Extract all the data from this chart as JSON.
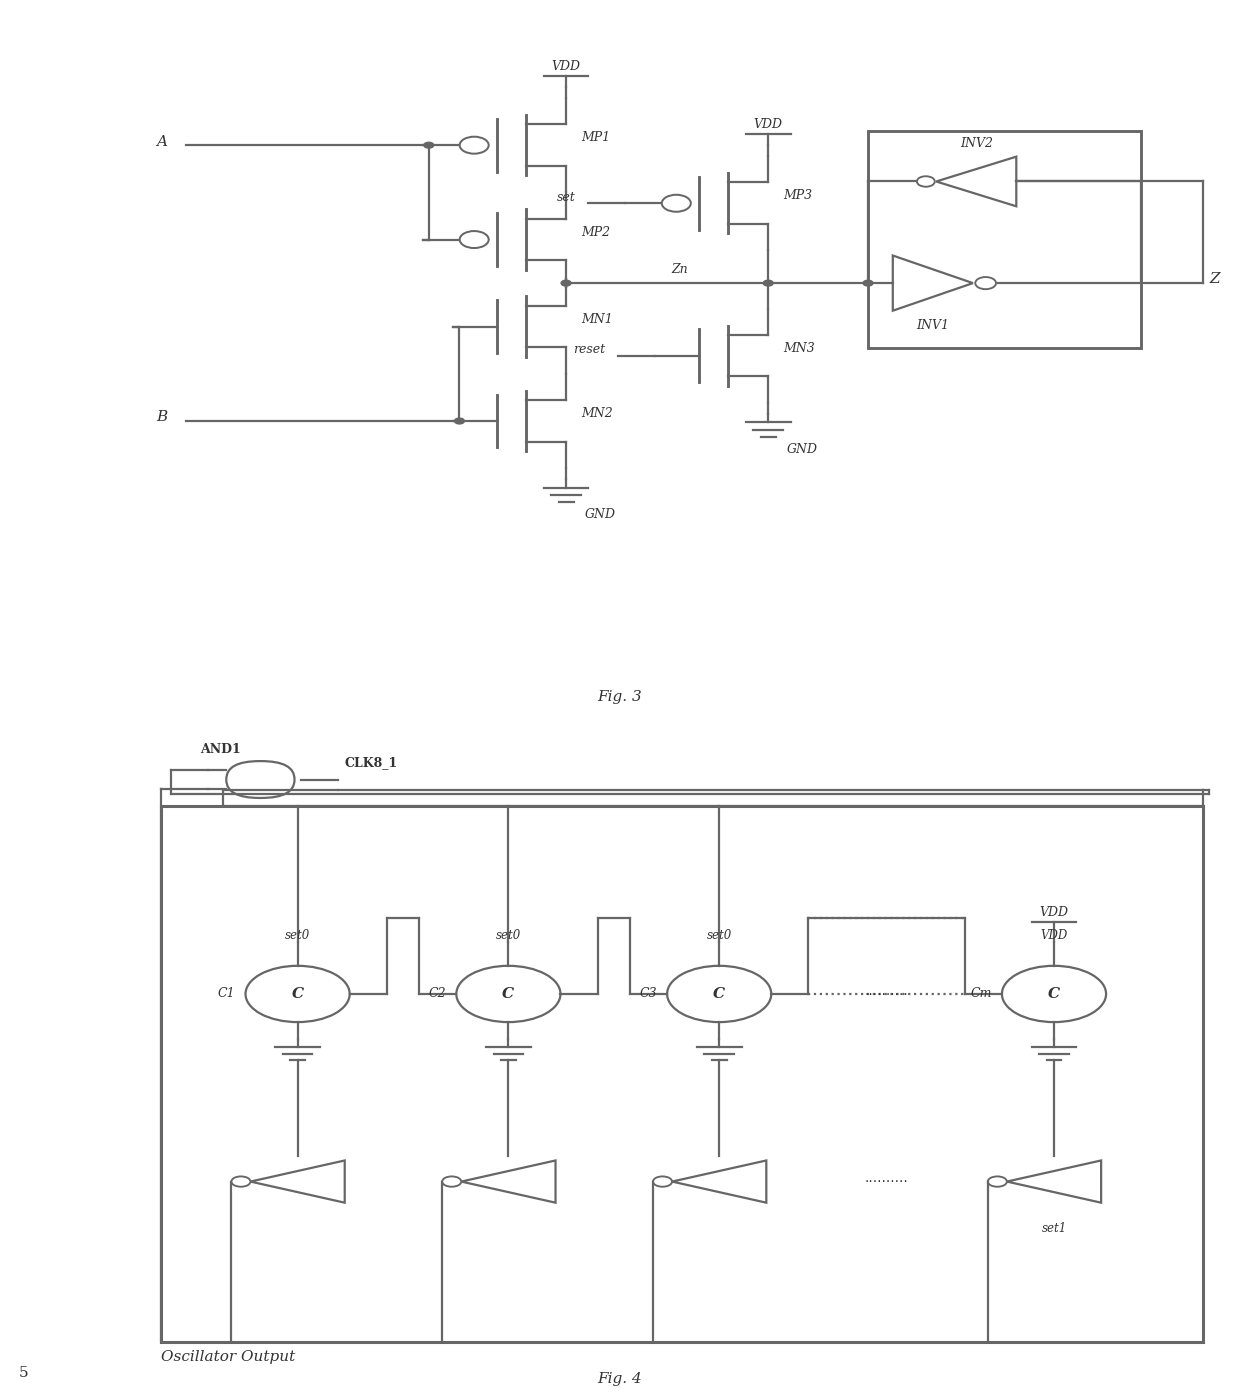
{
  "fig_width": 12.4,
  "fig_height": 13.96,
  "dpi": 100,
  "bg_color": "#ffffff",
  "line_color": "#666666",
  "text_color": "#333333",
  "fig3_caption": "Fig. 3",
  "fig4_caption": "Fig. 4",
  "page_number": "5",
  "lw": 1.6,
  "lw_thick": 2.2
}
